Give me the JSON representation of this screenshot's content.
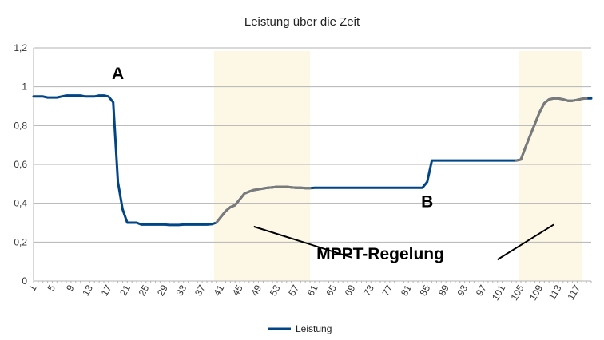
{
  "chart_data": {
    "type": "line",
    "title": "Leistung über die Zeit",
    "xlabel": "",
    "ylabel": "",
    "ylim": [
      0,
      1.2
    ],
    "yticks": [
      "0",
      "0,2",
      "0,4",
      "0,6",
      "0,8",
      "1",
      "1,2"
    ],
    "ytick_values": [
      0,
      0.2,
      0.4,
      0.6,
      0.8,
      1.0,
      1.2
    ],
    "xlim": [
      1,
      120
    ],
    "xtick_values": [
      1,
      5,
      9,
      13,
      17,
      21,
      25,
      29,
      33,
      37,
      41,
      45,
      49,
      53,
      57,
      61,
      65,
      69,
      73,
      77,
      81,
      85,
      89,
      93,
      97,
      101,
      105,
      109,
      113,
      117
    ],
    "grid": true,
    "legend_position": "bottom",
    "series": [
      {
        "name": "Leistung",
        "color": "#004586",
        "x": [
          1,
          2,
          3,
          4,
          5,
          6,
          7,
          8,
          9,
          10,
          11,
          12,
          13,
          14,
          15,
          16,
          17,
          18,
          19,
          20,
          21,
          22,
          23,
          24,
          25,
          26,
          27,
          28,
          29,
          30,
          31,
          32,
          33,
          34,
          35,
          36,
          37,
          38,
          39,
          40,
          41,
          42,
          43,
          44,
          45,
          46,
          47,
          48,
          49,
          50,
          51,
          52,
          53,
          54,
          55,
          56,
          57,
          58,
          59,
          60,
          61,
          62,
          63,
          64,
          65,
          66,
          67,
          68,
          69,
          70,
          71,
          72,
          73,
          74,
          75,
          76,
          77,
          78,
          79,
          80,
          81,
          82,
          83,
          84,
          85,
          86,
          87,
          88,
          89,
          90,
          91,
          92,
          93,
          94,
          95,
          96,
          97,
          98,
          99,
          100,
          101,
          102,
          103,
          104,
          105,
          106,
          107,
          108,
          109,
          110,
          111,
          112,
          113,
          114,
          115,
          116,
          117,
          118,
          119,
          120
        ],
        "values": [
          0.95,
          0.95,
          0.95,
          0.945,
          0.945,
          0.945,
          0.95,
          0.955,
          0.955,
          0.955,
          0.955,
          0.95,
          0.95,
          0.95,
          0.955,
          0.955,
          0.95,
          0.92,
          0.51,
          0.37,
          0.3,
          0.3,
          0.3,
          0.29,
          0.29,
          0.29,
          0.29,
          0.29,
          0.29,
          0.288,
          0.288,
          0.288,
          0.29,
          0.29,
          0.29,
          0.29,
          0.29,
          0.29,
          0.292,
          0.3,
          0.33,
          0.36,
          0.38,
          0.39,
          0.42,
          0.45,
          0.46,
          0.468,
          0.472,
          0.476,
          0.48,
          0.482,
          0.485,
          0.485,
          0.485,
          0.482,
          0.48,
          0.48,
          0.478,
          0.478,
          0.48,
          0.48,
          0.48,
          0.48,
          0.48,
          0.48,
          0.48,
          0.48,
          0.48,
          0.48,
          0.48,
          0.48,
          0.48,
          0.48,
          0.48,
          0.48,
          0.48,
          0.48,
          0.48,
          0.48,
          0.48,
          0.48,
          0.48,
          0.48,
          0.51,
          0.62,
          0.62,
          0.62,
          0.62,
          0.62,
          0.62,
          0.62,
          0.62,
          0.62,
          0.62,
          0.62,
          0.62,
          0.62,
          0.62,
          0.62,
          0.62,
          0.62,
          0.62,
          0.62,
          0.625,
          0.69,
          0.75,
          0.81,
          0.87,
          0.915,
          0.935,
          0.94,
          0.94,
          0.935,
          0.928,
          0.928,
          0.932,
          0.938,
          0.94,
          0.94
        ]
      }
    ],
    "mppt_segments": [
      [
        40,
        60
      ],
      [
        104,
        119
      ]
    ],
    "mppt_color": "#7a7a7a",
    "highlight_regions": [
      [
        39.5,
        60
      ],
      [
        104.5,
        118
      ]
    ],
    "highlight_color": "#fdf8e6",
    "annotations": [
      {
        "text": "A",
        "x": 19,
        "y": 1.04
      },
      {
        "text": "B",
        "x": 85,
        "y": 0.38
      },
      {
        "text": "MPPT-Regelung",
        "x": 75,
        "y": 0.11
      }
    ],
    "callout_lines": [
      {
        "from": [
          48,
          0.28
        ],
        "to": [
          69,
          0.12
        ]
      },
      {
        "from": [
          100,
          0.11
        ],
        "to": [
          112,
          0.29
        ]
      }
    ]
  }
}
